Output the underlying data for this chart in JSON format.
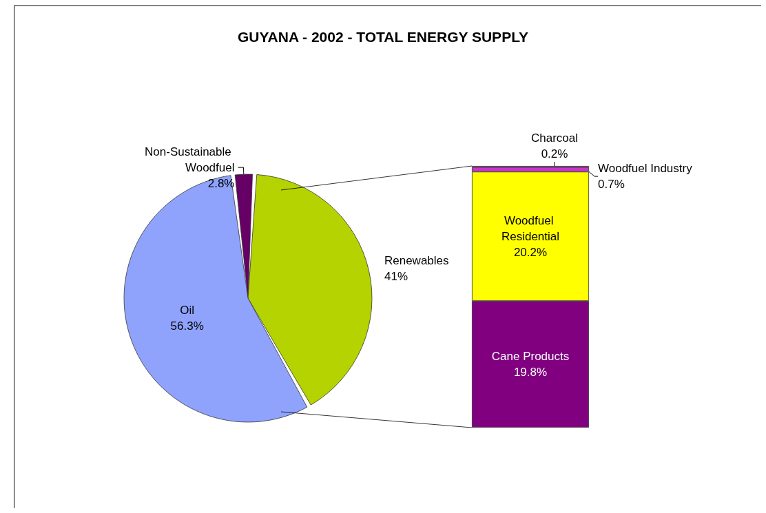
{
  "chart_data": [
    {
      "type": "pie",
      "title": "GUYANA - 2002 - TOTAL ENERGY SUPPLY",
      "categories": [
        "Non-Sustainable Woodfuel",
        "Renewables",
        "Oil"
      ],
      "values": [
        2.8,
        41,
        56.3
      ],
      "colors": [
        "#660066",
        "#b5d300",
        "#8fa3fc"
      ],
      "value_labels": [
        "2.8%",
        "41%",
        "56.3%"
      ]
    },
    {
      "type": "bar",
      "stacked": true,
      "categories": [
        null
      ],
      "series": [
        {
          "name": "Cane Products",
          "color": "#800080",
          "values": [
            19.8
          ],
          "value_labels": [
            "19.8%"
          ]
        },
        {
          "name": "Woodfuel Residential",
          "color": "#ffff00",
          "values": [
            20.2
          ],
          "value_labels": [
            "20.2%"
          ]
        },
        {
          "name": "Woodfuel Industry",
          "color": "#cc33cc",
          "values": [
            0.7
          ],
          "value_labels": [
            "0.7%"
          ]
        },
        {
          "name": "Charcoal",
          "color": "#ff00ff",
          "values": [
            0.2
          ],
          "value_labels": [
            "0.2%"
          ]
        }
      ]
    }
  ]
}
